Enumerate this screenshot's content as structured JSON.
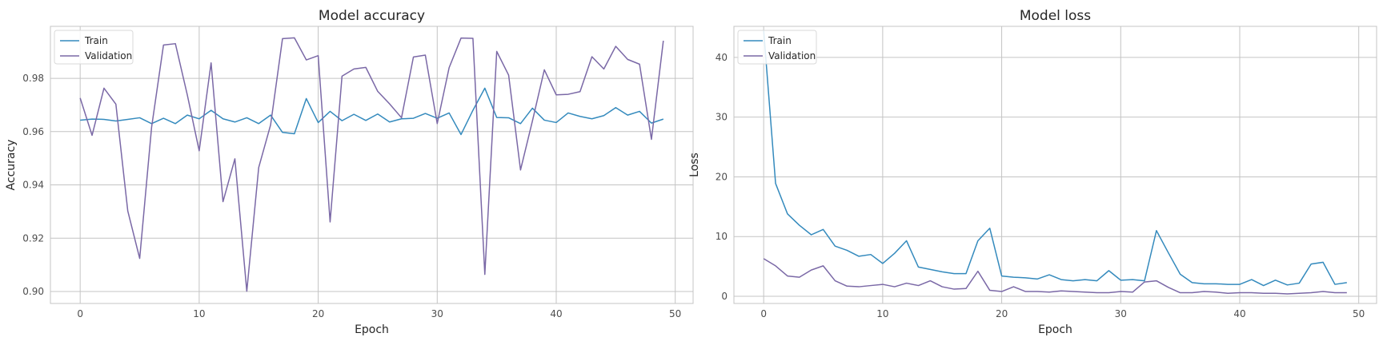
{
  "chart_data": [
    {
      "type": "line",
      "title": "Model accuracy",
      "xlabel": "Epoch",
      "ylabel": "Accuracy",
      "xlim": [
        -2.5,
        51.5
      ],
      "ylim": [
        0.8955,
        0.9995
      ],
      "xticks": [
        0,
        10,
        20,
        30,
        40,
        50
      ],
      "yticks": [
        0.9,
        0.92,
        0.94,
        0.96,
        0.98
      ],
      "ytick_decimals": 2,
      "grid": true,
      "legend": "upper left",
      "x": [
        0,
        1,
        2,
        3,
        4,
        5,
        6,
        7,
        8,
        9,
        10,
        11,
        12,
        13,
        14,
        15,
        16,
        17,
        18,
        19,
        20,
        21,
        22,
        23,
        24,
        25,
        26,
        27,
        28,
        29,
        30,
        31,
        32,
        33,
        34,
        35,
        36,
        37,
        38,
        39,
        40,
        41,
        42,
        43,
        44,
        45,
        46,
        47,
        48,
        49
      ],
      "series": [
        {
          "name": "Train",
          "color": "#348ABD",
          "values": [
            0.9643,
            0.9647,
            0.9646,
            0.964,
            0.9646,
            0.9652,
            0.963,
            0.965,
            0.963,
            0.9662,
            0.9648,
            0.968,
            0.9648,
            0.9636,
            0.9652,
            0.963,
            0.9662,
            0.9597,
            0.9592,
            0.9724,
            0.9634,
            0.9676,
            0.9641,
            0.9665,
            0.9642,
            0.9666,
            0.9636,
            0.9648,
            0.965,
            0.9668,
            0.965,
            0.967,
            0.9589,
            0.968,
            0.9763,
            0.9653,
            0.9652,
            0.963,
            0.9688,
            0.9643,
            0.9634,
            0.967,
            0.9657,
            0.9648,
            0.966,
            0.969,
            0.9662,
            0.9676,
            0.9632,
            0.9647
          ]
        },
        {
          "name": "Validation",
          "color": "#7A68A6",
          "values": [
            0.9726,
            0.9586,
            0.9763,
            0.9703,
            0.9302,
            0.9124,
            0.9616,
            0.9925,
            0.993,
            0.9738,
            0.9528,
            0.9858,
            0.9337,
            0.9498,
            0.9001,
            0.9465,
            0.9625,
            0.9949,
            0.9952,
            0.9869,
            0.9885,
            0.9261,
            0.9808,
            0.9835,
            0.9841,
            0.9751,
            0.9704,
            0.9652,
            0.988,
            0.9887,
            0.963,
            0.984,
            0.9951,
            0.995,
            0.9064,
            0.9901,
            0.9812,
            0.9456,
            0.964,
            0.9832,
            0.9738,
            0.974,
            0.975,
            0.9881,
            0.9835,
            0.992,
            0.9871,
            0.9853,
            0.9571,
            0.9941
          ]
        }
      ]
    },
    {
      "type": "line",
      "title": "Model loss",
      "xlabel": "Epoch",
      "ylabel": "Loss",
      "xlim": [
        -2.5,
        51.5
      ],
      "ylim": [
        -1.2,
        45.2
      ],
      "xticks": [
        0,
        10,
        20,
        30,
        40,
        50
      ],
      "yticks": [
        0,
        10,
        20,
        30,
        40
      ],
      "ytick_decimals": 0,
      "grid": true,
      "legend": "upper left",
      "x": [
        0,
        1,
        2,
        3,
        4,
        5,
        6,
        7,
        8,
        9,
        10,
        11,
        12,
        13,
        14,
        15,
        16,
        17,
        18,
        19,
        20,
        21,
        22,
        23,
        24,
        25,
        26,
        27,
        28,
        29,
        30,
        31,
        32,
        33,
        34,
        35,
        36,
        37,
        38,
        39,
        40,
        41,
        42,
        43,
        44,
        45,
        46,
        47,
        48,
        49
      ],
      "series": [
        {
          "name": "Train",
          "color": "#348ABD",
          "values": [
            44.5,
            18.9,
            13.8,
            11.9,
            10.3,
            11.2,
            8.4,
            7.7,
            6.7,
            7.0,
            5.5,
            7.2,
            9.3,
            4.9,
            4.5,
            4.1,
            3.8,
            3.8,
            9.3,
            11.4,
            3.4,
            3.2,
            3.1,
            2.9,
            3.6,
            2.8,
            2.6,
            2.8,
            2.6,
            4.3,
            2.7,
            2.8,
            2.6,
            11.0,
            7.3,
            3.7,
            2.3,
            2.1,
            2.1,
            2.0,
            2.0,
            2.8,
            1.8,
            2.7,
            1.9,
            2.2,
            5.4,
            5.7,
            2.0,
            2.3
          ]
        },
        {
          "name": "Validation",
          "color": "#7A68A6",
          "values": [
            6.3,
            5.1,
            3.4,
            3.2,
            4.4,
            5.1,
            2.6,
            1.7,
            1.6,
            1.8,
            2.0,
            1.6,
            2.2,
            1.8,
            2.6,
            1.6,
            1.2,
            1.3,
            4.2,
            1.0,
            0.8,
            1.6,
            0.8,
            0.8,
            0.7,
            0.9,
            0.8,
            0.7,
            0.6,
            0.6,
            0.8,
            0.7,
            2.4,
            2.6,
            1.5,
            0.6,
            0.6,
            0.8,
            0.7,
            0.5,
            0.6,
            0.6,
            0.5,
            0.5,
            0.4,
            0.5,
            0.6,
            0.8,
            0.6,
            0.6
          ]
        }
      ]
    }
  ]
}
